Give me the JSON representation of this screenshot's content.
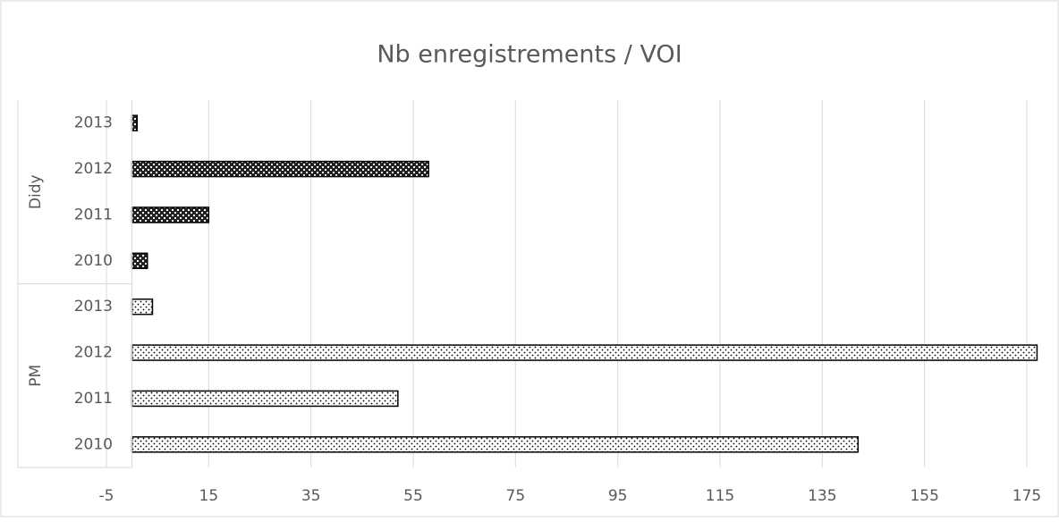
{
  "chart_data": {
    "type": "bar",
    "orientation": "horizontal",
    "title": "Nb enregistrements / VOI",
    "groups": [
      {
        "name": "PM",
        "categories": [
          "2010",
          "2011",
          "2012",
          "2013"
        ],
        "values": [
          142,
          52,
          177,
          4
        ],
        "pattern": "dots",
        "color": "#000000"
      },
      {
        "name": "Didy",
        "categories": [
          "2010",
          "2011",
          "2012",
          "2013"
        ],
        "values": [
          3,
          15,
          58,
          1
        ],
        "pattern": "checker",
        "color": "#000000"
      }
    ],
    "xlim": [
      -5,
      175
    ],
    "xticks": [
      -5,
      15,
      35,
      55,
      75,
      95,
      115,
      135,
      155,
      175
    ],
    "grid": true
  }
}
